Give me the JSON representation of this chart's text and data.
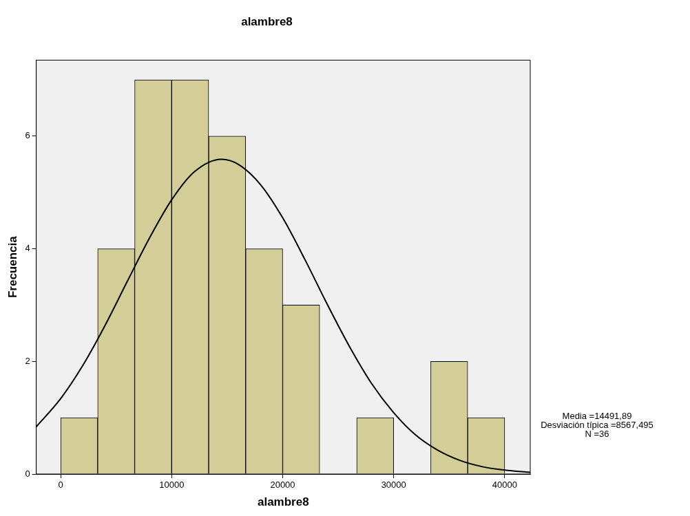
{
  "chart_data": {
    "type": "histogram",
    "title": "alambre8",
    "xlabel": "alambre8",
    "ylabel": "Frecuencia",
    "bins": [
      0,
      3333,
      6667,
      10000,
      13333,
      16667,
      20000,
      23333,
      26667,
      30000,
      33333,
      36667,
      40000
    ],
    "values": [
      1,
      4,
      7,
      7,
      6,
      4,
      3,
      0,
      1,
      0,
      2,
      1
    ],
    "color": "#d3ce98",
    "series": [
      {
        "type": "line",
        "color": "#000000",
        "x": [
          -2200,
          0,
          2000,
          4000,
          6000,
          8000,
          10000,
          12000,
          14492,
          16000,
          18000,
          20000,
          22000,
          24000,
          26000,
          28000,
          30000,
          32000,
          34000,
          36000,
          38000,
          40000,
          42300
        ],
        "values": [
          0.84,
          1.34,
          1.93,
          2.64,
          3.42,
          4.19,
          4.87,
          5.36,
          5.59,
          5.5,
          5.14,
          4.55,
          3.81,
          3.02,
          2.27,
          1.61,
          1.09,
          0.69,
          0.42,
          0.24,
          0.13,
          0.07,
          0.03
        ]
      }
    ],
    "xlim": [
      -2200,
      42300
    ],
    "xticks": [
      0,
      10000,
      20000,
      30000,
      40000
    ],
    "ylim": [
      0,
      7.35
    ],
    "yticks": [
      0,
      2,
      4,
      6
    ],
    "grid": false,
    "legend": false,
    "annotations": [
      "Media =14491,89",
      "Desviación típica =8567,495",
      "N =36"
    ]
  }
}
